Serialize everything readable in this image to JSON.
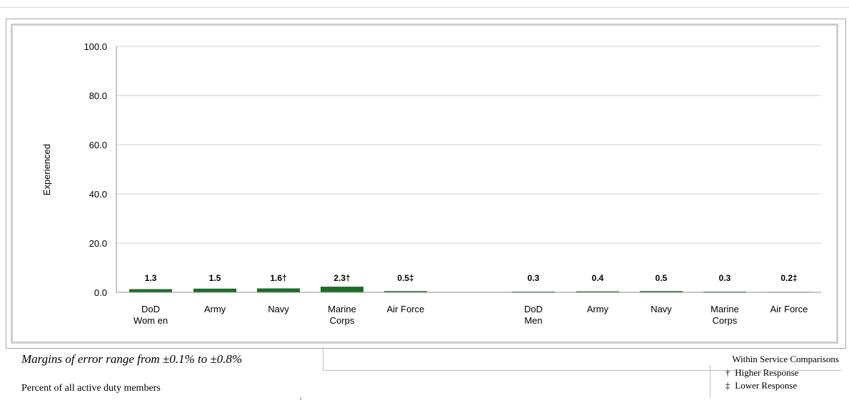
{
  "chart_data": {
    "type": "bar",
    "title": "",
    "ylabel": "Experienced",
    "xlabel": "",
    "ylim": [
      0,
      100
    ],
    "yticks": [
      "100.0",
      "80.0",
      "60.0",
      "40.0",
      "20.0",
      "0.0"
    ],
    "ytick_values": [
      100,
      80,
      60,
      40,
      20,
      0
    ],
    "grid": true,
    "bar_color": "#1e6b2a",
    "groups": [
      {
        "bars": [
          {
            "category": "DoD Women",
            "lines": [
              "DoD",
              "Wom en"
            ],
            "value": 1.3,
            "label": "1.3"
          },
          {
            "category": "Army",
            "lines": [
              "Army"
            ],
            "value": 1.5,
            "label": "1.5"
          },
          {
            "category": "Navy",
            "lines": [
              "Navy"
            ],
            "value": 1.6,
            "label": "1.6†"
          },
          {
            "category": "Marine Corps",
            "lines": [
              "Marine",
              "Corps"
            ],
            "value": 2.3,
            "label": "2.3†"
          },
          {
            "category": "Air Force",
            "lines": [
              "Air Force"
            ],
            "value": 0.5,
            "label": "0.5‡"
          }
        ]
      },
      {
        "bars": [
          {
            "category": "DoD Men",
            "lines": [
              "DoD",
              "Men"
            ],
            "value": 0.3,
            "label": "0.3"
          },
          {
            "category": "Army",
            "lines": [
              "Army"
            ],
            "value": 0.4,
            "label": "0.4"
          },
          {
            "category": "Navy",
            "lines": [
              "Navy"
            ],
            "value": 0.5,
            "label": "0.5"
          },
          {
            "category": "Marine Corps",
            "lines": [
              "Marine",
              "Corps"
            ],
            "value": 0.3,
            "label": "0.3"
          },
          {
            "category": "Air Force",
            "lines": [
              "Air Force"
            ],
            "value": 0.2,
            "label": "0.2‡"
          }
        ]
      }
    ]
  },
  "notes": {
    "margin_of_error": "Margins of error range from ±0.1% to ±0.8%",
    "base": "Percent of all active duty members"
  },
  "legend": {
    "title": "Within Service Comparisons",
    "items": [
      {
        "symbol": "†",
        "label": "Higher Response"
      },
      {
        "symbol": "‡",
        "label": "Lower Response"
      }
    ]
  }
}
